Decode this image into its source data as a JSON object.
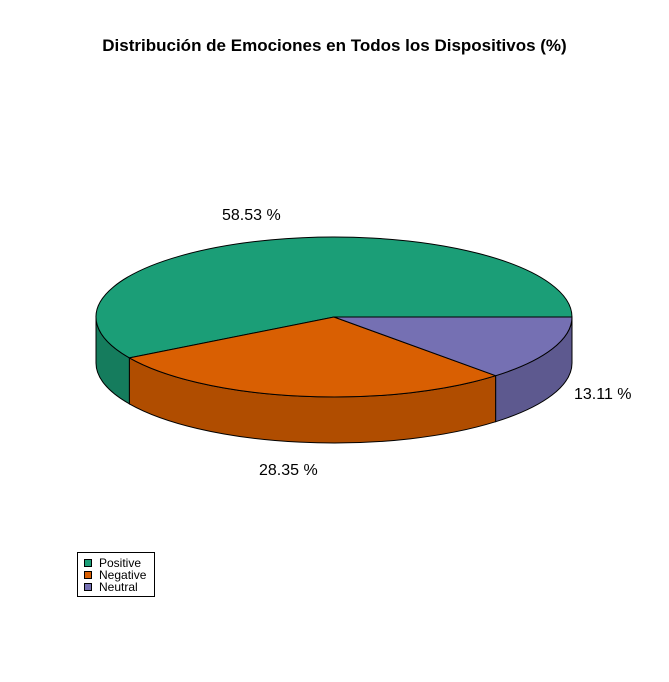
{
  "chart_data": {
    "type": "pie",
    "title": "Distribución de Emociones en Todos los Dispositivos (%)",
    "categories": [
      "Positive",
      "Negative",
      "Neutral"
    ],
    "values": [
      58.53,
      28.35,
      13.11
    ],
    "labels": [
      "58.53 %",
      "28.35 %",
      "13.11 %"
    ],
    "colors": [
      "#1b9e77",
      "#d95f02",
      "#7570b3"
    ],
    "legend_position": "bottom-left",
    "style": "3d"
  }
}
